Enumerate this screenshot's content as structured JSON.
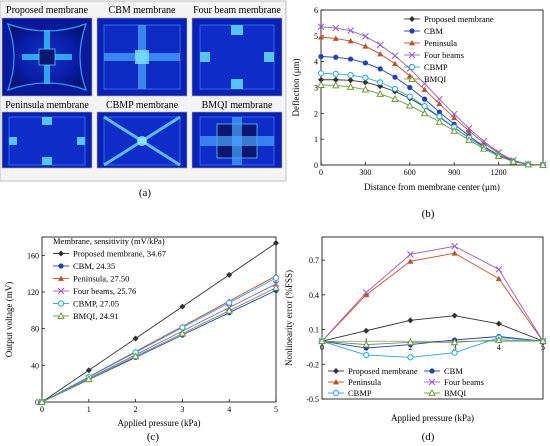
{
  "panel_a": {
    "tiles": [
      {
        "title": "Proposed membrane"
      },
      {
        "title": "CBM membrane"
      },
      {
        "title": "Four beam membrane"
      },
      {
        "title": "Peninsula membrane"
      },
      {
        "title": "CBMP membrane"
      },
      {
        "title": "BMQI membrane"
      }
    ],
    "caption": "(a)"
  },
  "captions": {
    "b": "(b)",
    "c": "(c)",
    "d": "(d)"
  },
  "colors": {
    "Proposed membrane": "#333333",
    "CBM": "#1f3fbf",
    "Peninsula": "#c0502a",
    "Four beams": "#9a5fc8",
    "CBMP": "#2aa6d8",
    "BMQI": "#6f9a3a"
  },
  "chart_data": [
    {
      "id": "b",
      "type": "line",
      "xlabel": "Distance from membrane center (μm)",
      "ylabel": "Deflection (μm)",
      "xlim": [
        0,
        1500
      ],
      "ylim": [
        0,
        6
      ],
      "xticks": [
        "0",
        "300",
        "600",
        "900",
        "1200"
      ],
      "yticks": [
        "0",
        "1",
        "2",
        "3",
        "4",
        "5",
        "6"
      ],
      "legend_position": "top-right",
      "x": [
        0,
        100,
        200,
        300,
        400,
        500,
        600,
        700,
        800,
        900,
        1000,
        1100,
        1200,
        1300,
        1400,
        1500
      ],
      "series": [
        {
          "name": "Proposed membrane",
          "marker": "diamond",
          "values": [
            3.3,
            3.3,
            3.28,
            3.2,
            3.05,
            2.85,
            2.58,
            2.25,
            1.85,
            1.45,
            1.05,
            0.7,
            0.38,
            0.15,
            0.03,
            0
          ]
        },
        {
          "name": "CBM",
          "marker": "circle",
          "values": [
            4.2,
            4.17,
            4.1,
            3.95,
            3.72,
            3.4,
            3.0,
            2.55,
            2.05,
            1.58,
            1.13,
            0.72,
            0.38,
            0.14,
            0.03,
            0
          ]
        },
        {
          "name": "Peninsula",
          "marker": "triangle",
          "values": [
            4.95,
            4.9,
            4.8,
            4.6,
            4.3,
            3.92,
            3.45,
            2.92,
            2.37,
            1.83,
            1.32,
            0.85,
            0.45,
            0.17,
            0.03,
            0
          ]
        },
        {
          "name": "Four beams",
          "marker": "x",
          "values": [
            5.35,
            5.3,
            5.2,
            4.98,
            4.65,
            4.23,
            3.73,
            3.15,
            2.55,
            1.97,
            1.42,
            0.92,
            0.49,
            0.18,
            0.03,
            0
          ]
        },
        {
          "name": "CBMP",
          "marker": "circle-open",
          "values": [
            3.55,
            3.53,
            3.48,
            3.38,
            3.2,
            2.95,
            2.65,
            2.28,
            1.88,
            1.46,
            1.05,
            0.68,
            0.36,
            0.13,
            0.02,
            0
          ]
        },
        {
          "name": "BMQI",
          "marker": "triangle-open",
          "values": [
            3.1,
            3.08,
            3.02,
            2.92,
            2.75,
            2.55,
            2.3,
            2.0,
            1.67,
            1.32,
            0.97,
            0.63,
            0.34,
            0.13,
            0.02,
            0
          ]
        }
      ]
    },
    {
      "id": "c",
      "type": "line",
      "xlabel": "Applied pressure (kPa)",
      "ylabel": "Output voltage (mV)",
      "xlim": [
        0,
        5
      ],
      "ylim": [
        0,
        180
      ],
      "xticks": [
        "0",
        "1",
        "2",
        "3",
        "4",
        "5"
      ],
      "yticks": [
        "0",
        "40",
        "80",
        "120",
        "160"
      ],
      "legend_title": "Membrane, sensitivity (mV/kPa)",
      "legend_position": "top-left",
      "x": [
        0,
        1,
        2,
        3,
        4,
        5
      ],
      "series": [
        {
          "name": "Proposed membrane, 34.67",
          "key": "Proposed membrane",
          "marker": "diamond",
          "values": [
            0,
            34.7,
            69.3,
            104.0,
            138.7,
            173.4
          ]
        },
        {
          "name": "CBM, 24.35",
          "key": "CBM",
          "marker": "circle",
          "values": [
            0,
            24.4,
            48.7,
            73.1,
            97.4,
            121.8
          ]
        },
        {
          "name": "Peninsula, 27.50",
          "key": "Peninsula",
          "marker": "triangle",
          "values": [
            0,
            27.5,
            55.0,
            82.5,
            110.0,
            137.5
          ]
        },
        {
          "name": "Four beams, 25.76",
          "key": "Four beams",
          "marker": "x",
          "values": [
            0,
            25.8,
            51.5,
            77.3,
            103.0,
            128.8
          ]
        },
        {
          "name": "CBMP, 27.05",
          "key": "CBMP",
          "marker": "circle-open",
          "values": [
            0,
            27.1,
            54.1,
            81.2,
            108.2,
            135.3
          ]
        },
        {
          "name": "BMQI, 24.91",
          "key": "BMQI",
          "marker": "triangle-open",
          "values": [
            0,
            24.9,
            49.8,
            74.7,
            99.6,
            124.6
          ]
        }
      ]
    },
    {
      "id": "d",
      "type": "line",
      "xlabel": "Applied pressure (kPa)",
      "ylabel": "Nonlinearity error (%FSS)",
      "xlim": [
        0,
        5
      ],
      "ylim": [
        -0.5,
        0.9
      ],
      "xticks": [
        "0",
        "1",
        "2",
        "3",
        "4",
        "5"
      ],
      "yticks": [
        "-0.5",
        "-0.2",
        "0.1",
        "0.4",
        "0.7"
      ],
      "legend_position": "bottom",
      "x": [
        0,
        1,
        2,
        3,
        4,
        5
      ],
      "series": [
        {
          "name": "Proposed membrane",
          "marker": "diamond",
          "values": [
            0,
            0.09,
            0.18,
            0.22,
            0.15,
            0
          ]
        },
        {
          "name": "CBM",
          "marker": "circle",
          "values": [
            0,
            -0.06,
            -0.03,
            0.01,
            0.04,
            0
          ]
        },
        {
          "name": "Peninsula",
          "marker": "triangle",
          "values": [
            0,
            0.4,
            0.69,
            0.76,
            0.54,
            0
          ]
        },
        {
          "name": "Four beams",
          "marker": "x",
          "values": [
            0,
            0.42,
            0.75,
            0.82,
            0.62,
            0
          ]
        },
        {
          "name": "CBMP",
          "marker": "circle-open",
          "values": [
            0,
            -0.12,
            -0.14,
            -0.1,
            0.03,
            0
          ]
        },
        {
          "name": "BMQI",
          "marker": "triangle-open",
          "values": [
            0,
            -0.03,
            -0.01,
            -0.01,
            0.01,
            0
          ]
        }
      ]
    }
  ]
}
